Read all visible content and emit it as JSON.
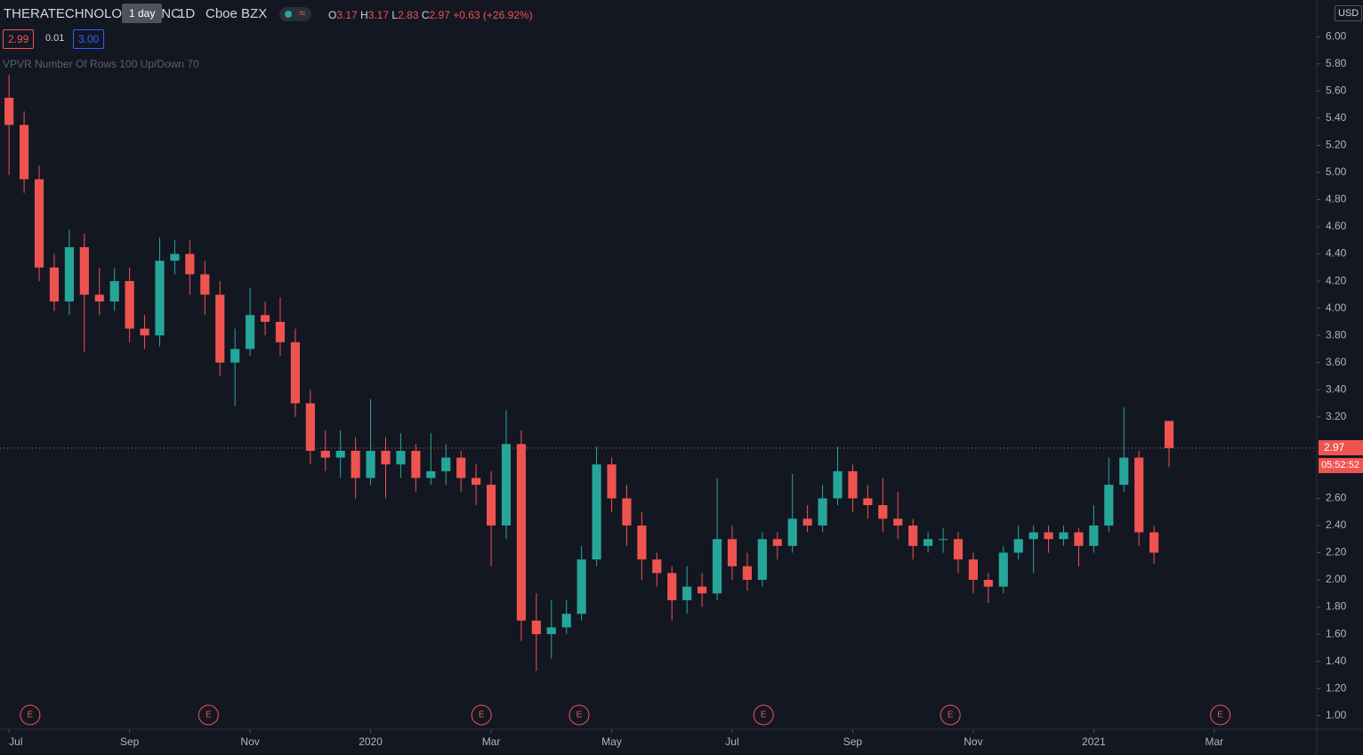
{
  "chart_data": {
    "type": "candlestick",
    "symbol": "THERATECHNOLOGIES INC",
    "tooltip": "1 day",
    "interval": "1D",
    "exchange": "Cboe BZX",
    "ohlc": {
      "o_label": "O",
      "open": 3.17,
      "h_label": "H",
      "high": 3.17,
      "l_label": "L",
      "low": 2.83,
      "c_label": "C",
      "close": 2.97,
      "change": "+0.63 (+26.92%)"
    },
    "bid": "2.99",
    "spread": "0.01",
    "ask": "3.00",
    "indicator": "VPVR Number Of Rows 100 Up/Down 70",
    "currency": "USD",
    "last_price": 2.97,
    "last_price_label": "2.97",
    "countdown": "05:52:52",
    "up_color": "#26a69a",
    "down_color": "#ef5350",
    "xlim": [
      -0.15,
      21.7
    ],
    "ylim": [
      0.9,
      6.27
    ],
    "xticks": [
      {
        "value": 0,
        "label": "Jul"
      },
      {
        "value": 2,
        "label": "Sep"
      },
      {
        "value": 4,
        "label": "Nov"
      },
      {
        "value": 6,
        "label": "2020"
      },
      {
        "value": 8,
        "label": "Mar"
      },
      {
        "value": 10,
        "label": "May"
      },
      {
        "value": 12,
        "label": "Jul"
      },
      {
        "value": 14,
        "label": "Sep"
      },
      {
        "value": 16,
        "label": "Nov"
      },
      {
        "value": 18,
        "label": "2021"
      },
      {
        "value": 20,
        "label": "Mar"
      }
    ],
    "yticks": [
      {
        "value": 1,
        "label": "1.00"
      },
      {
        "value": 1.2,
        "label": "1.20"
      },
      {
        "value": 1.4,
        "label": "1.40"
      },
      {
        "value": 1.6,
        "label": "1.60"
      },
      {
        "value": 1.8,
        "label": "1.80"
      },
      {
        "value": 2,
        "label": "2.00"
      },
      {
        "value": 2.2,
        "label": "2.20"
      },
      {
        "value": 2.4,
        "label": "2.40"
      },
      {
        "value": 2.6,
        "label": "2.60"
      },
      {
        "value": 3.2,
        "label": "3.20"
      },
      {
        "value": 3.4,
        "label": "3.40"
      },
      {
        "value": 3.6,
        "label": "3.60"
      },
      {
        "value": 3.8,
        "label": "3.80"
      },
      {
        "value": 4,
        "label": "4.00"
      },
      {
        "value": 4.2,
        "label": "4.20"
      },
      {
        "value": 4.4,
        "label": "4.40"
      },
      {
        "value": 4.6,
        "label": "4.60"
      },
      {
        "value": 4.8,
        "label": "4.80"
      },
      {
        "value": 5,
        "label": "5.00"
      },
      {
        "value": 5.2,
        "label": "5.20"
      },
      {
        "value": 5.4,
        "label": "5.40"
      },
      {
        "value": 5.6,
        "label": "5.60"
      },
      {
        "value": 5.8,
        "label": "5.80"
      },
      {
        "value": 6,
        "label": "6.00"
      }
    ],
    "events": {
      "x": [
        0.35,
        3.31,
        7.84,
        9.46,
        12.52,
        15.62,
        20.1
      ],
      "labels": [
        "E",
        "E",
        "E",
        "E",
        "E",
        "E",
        "E"
      ]
    },
    "x": [
      0,
      0.25,
      0.5,
      0.75,
      1,
      1.25,
      1.5,
      1.75,
      2,
      2.25,
      2.5,
      2.75,
      3,
      3.25,
      3.5,
      3.75,
      4,
      4.25,
      4.5,
      4.75,
      5,
      5.25,
      5.5,
      5.75,
      6,
      6.25,
      6.5,
      6.75,
      7,
      7.25,
      7.5,
      7.75,
      8,
      8.25,
      8.5,
      8.75,
      9,
      9.25,
      9.5,
      9.75,
      10,
      10.25,
      10.5,
      10.75,
      11,
      11.25,
      11.5,
      11.75,
      12,
      12.25,
      12.5,
      12.75,
      13,
      13.25,
      13.5,
      13.75,
      14,
      14.25,
      14.5,
      14.75,
      15,
      15.25,
      15.5,
      15.75,
      16,
      16.25,
      16.5,
      16.75,
      17,
      17.25,
      17.5,
      17.75,
      18,
      18.25,
      18.5,
      18.75,
      19,
      19.25
    ],
    "open": [
      5.55,
      5.35,
      4.95,
      4.3,
      4.05,
      4.45,
      4.1,
      4.05,
      4.2,
      3.85,
      3.8,
      4.35,
      4.4,
      4.25,
      4.1,
      3.6,
      3.7,
      3.95,
      3.9,
      3.75,
      3.3,
      2.95,
      2.9,
      2.95,
      2.75,
      2.95,
      2.85,
      2.95,
      2.75,
      2.8,
      2.9,
      2.75,
      2.7,
      2.4,
      3.0,
      1.7,
      1.6,
      1.65,
      1.75,
      2.15,
      2.85,
      2.6,
      2.4,
      2.15,
      2.05,
      1.85,
      1.95,
      1.9,
      2.3,
      2.1,
      2.0,
      2.3,
      2.25,
      2.45,
      2.4,
      2.6,
      2.8,
      2.6,
      2.55,
      2.45,
      2.4,
      2.25,
      2.3,
      2.3,
      2.15,
      2.0,
      1.95,
      2.2,
      2.3,
      2.35,
      2.3,
      2.35,
      2.25,
      2.4,
      2.7,
      2.9,
      2.35,
      3.17
    ],
    "high": [
      5.72,
      5.45,
      5.05,
      4.4,
      4.58,
      4.55,
      4.3,
      4.3,
      4.3,
      3.95,
      4.52,
      4.5,
      4.5,
      4.35,
      4.2,
      3.85,
      4.15,
      4.05,
      4.08,
      3.85,
      3.4,
      3.1,
      3.1,
      3.05,
      3.33,
      3.05,
      3.08,
      3.0,
      3.08,
      3.0,
      2.95,
      2.85,
      2.8,
      3.25,
      3.1,
      1.9,
      1.85,
      1.85,
      2.25,
      2.98,
      2.9,
      2.7,
      2.5,
      2.2,
      2.1,
      2.1,
      2.05,
      2.75,
      2.4,
      2.2,
      2.35,
      2.35,
      2.78,
      2.55,
      2.7,
      2.98,
      2.85,
      2.7,
      2.75,
      2.65,
      2.45,
      2.35,
      2.38,
      2.35,
      2.2,
      2.05,
      2.25,
      2.4,
      2.4,
      2.4,
      2.4,
      2.38,
      2.55,
      2.9,
      3.27,
      2.95,
      2.4,
      3.17
    ],
    "low": [
      4.98,
      4.85,
      4.2,
      3.98,
      3.95,
      3.68,
      3.95,
      3.98,
      3.75,
      3.7,
      3.72,
      4.25,
      4.1,
      3.95,
      3.5,
      3.28,
      3.65,
      3.8,
      3.65,
      3.2,
      2.85,
      2.8,
      2.75,
      2.6,
      2.7,
      2.6,
      2.75,
      2.65,
      2.7,
      2.7,
      2.65,
      2.55,
      2.1,
      2.3,
      1.55,
      1.33,
      1.42,
      1.6,
      1.7,
      2.1,
      2.5,
      2.25,
      2.0,
      1.95,
      1.7,
      1.75,
      1.8,
      1.85,
      2.0,
      1.92,
      1.95,
      2.15,
      2.2,
      2.35,
      2.35,
      2.55,
      2.5,
      2.45,
      2.35,
      2.3,
      2.15,
      2.2,
      2.2,
      2.05,
      1.9,
      1.83,
      1.9,
      2.15,
      2.05,
      2.2,
      2.25,
      2.1,
      2.2,
      2.35,
      2.65,
      2.25,
      2.12,
      2.83
    ],
    "close": [
      5.35,
      4.95,
      4.3,
      4.05,
      4.45,
      4.1,
      4.05,
      4.2,
      3.85,
      3.8,
      4.35,
      4.4,
      4.25,
      4.1,
      3.6,
      3.7,
      3.95,
      3.9,
      3.75,
      3.3,
      2.95,
      2.9,
      2.95,
      2.75,
      2.95,
      2.85,
      2.95,
      2.75,
      2.8,
      2.9,
      2.75,
      2.7,
      2.4,
      3.0,
      1.7,
      1.6,
      1.65,
      1.75,
      2.15,
      2.85,
      2.6,
      2.4,
      2.15,
      2.05,
      1.85,
      1.95,
      1.9,
      2.3,
      2.1,
      2.0,
      2.3,
      2.25,
      2.45,
      2.4,
      2.6,
      2.8,
      2.6,
      2.55,
      2.45,
      2.4,
      2.25,
      2.3,
      2.3,
      2.15,
      2.0,
      1.95,
      2.2,
      2.3,
      2.35,
      2.3,
      2.35,
      2.25,
      2.4,
      2.7,
      2.9,
      2.35,
      2.2,
      2.97
    ]
  }
}
